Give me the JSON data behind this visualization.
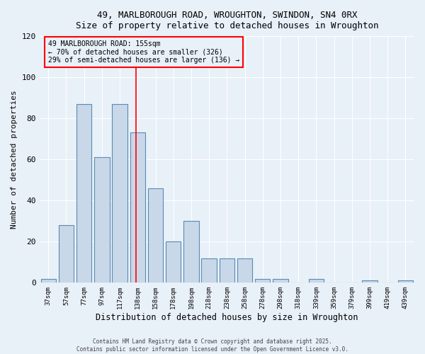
{
  "title_line1": "49, MARLBOROUGH ROAD, WROUGHTON, SWINDON, SN4 0RX",
  "title_line2": "Size of property relative to detached houses in Wroughton",
  "xlabel": "Distribution of detached houses by size in Wroughton",
  "ylabel": "Number of detached properties",
  "categories": [
    "37sqm",
    "57sqm",
    "77sqm",
    "97sqm",
    "117sqm",
    "138sqm",
    "158sqm",
    "178sqm",
    "198sqm",
    "218sqm",
    "238sqm",
    "258sqm",
    "278sqm",
    "298sqm",
    "318sqm",
    "339sqm",
    "359sqm",
    "379sqm",
    "399sqm",
    "419sqm",
    "439sqm"
  ],
  "values": [
    2,
    28,
    87,
    61,
    87,
    73,
    46,
    20,
    30,
    12,
    12,
    12,
    2,
    2,
    0,
    2,
    0,
    0,
    1,
    0,
    1
  ],
  "bar_color": "#c8d8e8",
  "bar_edge_color": "#5a8ab5",
  "annotation_lines": [
    "49 MARLBOROUGH ROAD: 155sqm",
    "← 70% of detached houses are smaller (326)",
    "29% of semi-detached houses are larger (136) →"
  ],
  "redline_x": 4.9,
  "ylim": [
    0,
    120
  ],
  "yticks": [
    0,
    20,
    40,
    60,
    80,
    100,
    120
  ],
  "background_color": "#e8f0f8",
  "grid_color": "#ffffff",
  "footer_line1": "Contains HM Land Registry data © Crown copyright and database right 2025.",
  "footer_line2": "Contains public sector information licensed under the Open Government Licence v3.0."
}
